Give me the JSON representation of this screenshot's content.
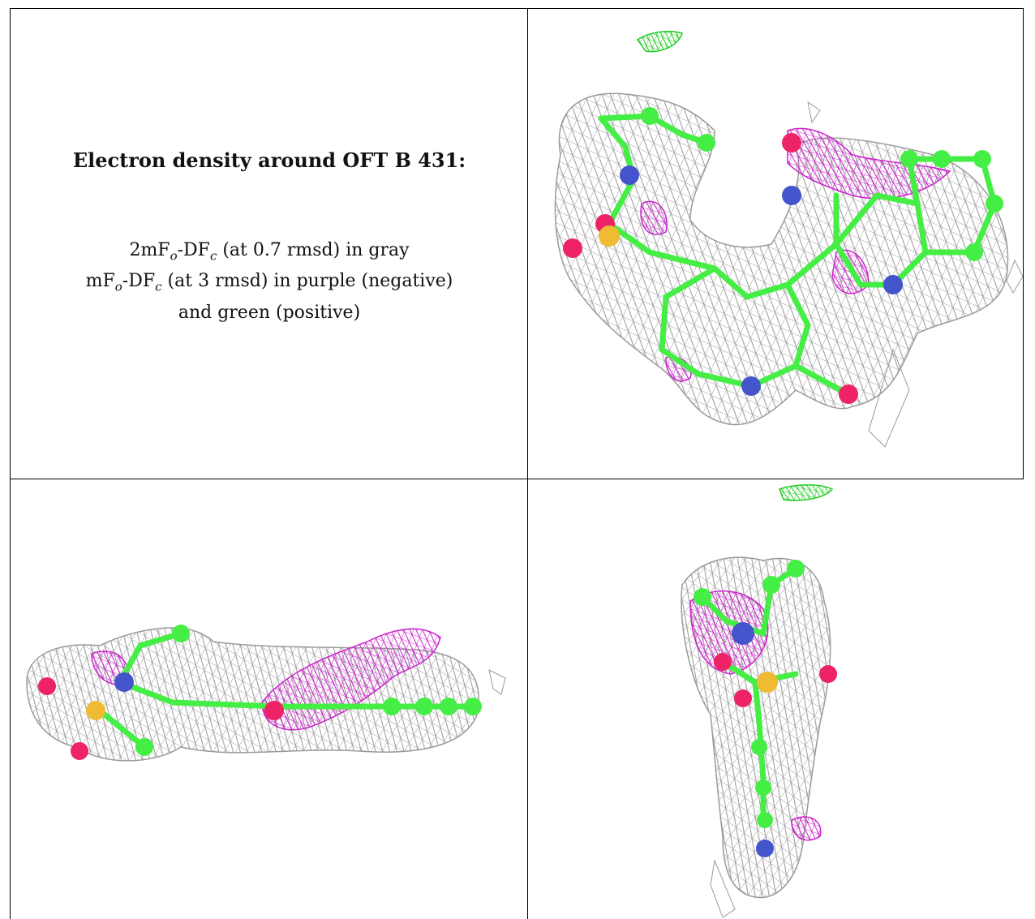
{
  "caption": {
    "title": "Electron density around OFT B 431:",
    "line1": "2mF",
    "line1_sub1": "o",
    "line1_mid": "-DF",
    "line1_sub2": "c",
    "line1_rest": " (at 0.7 rmsd) in gray",
    "line2": "mF",
    "line2_sub1": "o",
    "line2_mid": "-DF",
    "line2_sub2": "c",
    "line2_rest": " (at 3 rmsd) in purple (negative)",
    "line3": "and green (positive)"
  },
  "colors": {
    "mesh_gray": "#9a9a9a",
    "mesh_purple": "#cc22cc",
    "mesh_green": "#22cc22",
    "carbon": "#44ee44",
    "nitrogen": "#4455cc",
    "oxygen": "#ee2266",
    "sulfur": "#eebb33",
    "border": "#000000"
  },
  "panels": [
    {
      "name": "top-right-view"
    },
    {
      "name": "bottom-left-view"
    },
    {
      "name": "bottom-right-view"
    }
  ]
}
